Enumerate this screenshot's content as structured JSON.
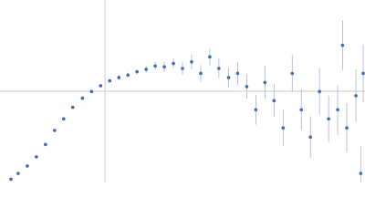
{
  "chart_data": {
    "type": "scatter",
    "xlim": [
      0,
      6.02
    ],
    "ylim": [
      0,
      2.208
    ],
    "xref": 1.732,
    "yref": 1.104,
    "color": "#3f68b5",
    "error_color": "#9fb4dc",
    "ref_color": "#cccccc",
    "x": [
      0.18,
      0.3,
      0.45,
      0.6,
      0.75,
      0.9,
      1.05,
      1.2,
      1.36,
      1.51,
      1.66,
      1.81,
      1.96,
      2.11,
      2.26,
      2.41,
      2.56,
      2.71,
      2.86,
      3.01,
      3.16,
      3.31,
      3.46,
      3.61,
      3.77,
      3.92,
      4.07,
      4.22,
      4.37,
      4.52,
      4.67,
      4.82,
      4.97,
      5.12,
      5.27,
      5.42,
      5.57,
      5.65,
      5.72,
      5.87,
      5.95,
      5.99
    ],
    "values": [
      0.04,
      0.11,
      0.2,
      0.31,
      0.46,
      0.63,
      0.77,
      0.91,
      1.02,
      1.1,
      1.17,
      1.23,
      1.27,
      1.3,
      1.34,
      1.37,
      1.41,
      1.4,
      1.44,
      1.38,
      1.46,
      1.32,
      1.52,
      1.38,
      1.27,
      1.32,
      1.16,
      0.88,
      1.21,
      0.99,
      0.66,
      1.32,
      0.88,
      0.55,
      1.1,
      0.77,
      0.88,
      1.66,
      0.66,
      1.05,
      0.11,
      1.32
    ],
    "errors": [
      0.01,
      0.01,
      0.01,
      0.01,
      0.01,
      0.01,
      0.01,
      0.01,
      0.02,
      0.02,
      0.02,
      0.02,
      0.03,
      0.03,
      0.03,
      0.04,
      0.05,
      0.06,
      0.06,
      0.08,
      0.09,
      0.1,
      0.1,
      0.12,
      0.12,
      0.14,
      0.15,
      0.18,
      0.2,
      0.2,
      0.22,
      0.22,
      0.25,
      0.25,
      0.28,
      0.28,
      0.3,
      0.3,
      0.3,
      0.32,
      0.33,
      0.35
    ]
  }
}
